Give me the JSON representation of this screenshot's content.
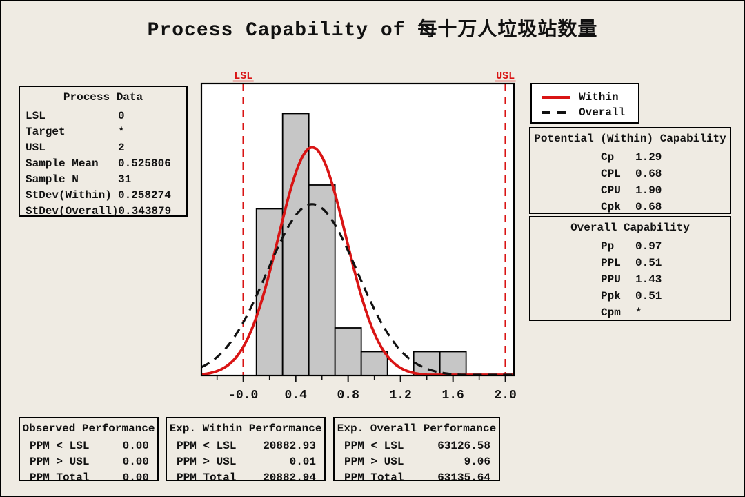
{
  "title": "Process Capability of 每十万人垃圾站数量",
  "process_data": {
    "title": "Process Data",
    "rows": [
      {
        "label": "LSL",
        "value": "0"
      },
      {
        "label": "Target",
        "value": "*"
      },
      {
        "label": "USL",
        "value": "2"
      },
      {
        "label": "Sample Mean",
        "value": "0.525806"
      },
      {
        "label": "Sample N",
        "value": "31"
      },
      {
        "label": "StDev(Within)",
        "value": "0.258274"
      },
      {
        "label": "StDev(Overall)",
        "value": "0.343879"
      }
    ]
  },
  "legend": {
    "items": [
      {
        "label": "Within",
        "style": "solid",
        "color": "#d91414"
      },
      {
        "label": "Overall",
        "style": "dashed",
        "color": "#111111"
      }
    ]
  },
  "within_capability": {
    "title": "Potential (Within) Capability",
    "rows": [
      {
        "label": "Cp",
        "value": "1.29"
      },
      {
        "label": "CPL",
        "value": "0.68"
      },
      {
        "label": "CPU",
        "value": "1.90"
      },
      {
        "label": "Cpk",
        "value": "0.68"
      }
    ]
  },
  "overall_capability": {
    "title": "Overall Capability",
    "rows": [
      {
        "label": "Pp",
        "value": "0.97"
      },
      {
        "label": "PPL",
        "value": "0.51"
      },
      {
        "label": "PPU",
        "value": "1.43"
      },
      {
        "label": "Ppk",
        "value": "0.51"
      },
      {
        "label": "Cpm",
        "value": "*"
      }
    ]
  },
  "performance_panels": [
    {
      "title": "Observed Performance",
      "rows": [
        {
          "label": "PPM < LSL",
          "value": "0.00"
        },
        {
          "label": "PPM > USL",
          "value": "0.00"
        },
        {
          "label": "PPM Total",
          "value": "0.00"
        }
      ]
    },
    {
      "title": "Exp. Within Performance",
      "rows": [
        {
          "label": "PPM < LSL",
          "value": "20882.93"
        },
        {
          "label": "PPM > USL",
          "value": "0.01"
        },
        {
          "label": "PPM Total",
          "value": "20882.94"
        }
      ]
    },
    {
      "title": "Exp. Overall Performance",
      "rows": [
        {
          "label": "PPM < LSL",
          "value": "63126.58"
        },
        {
          "label": "PPM > USL",
          "value": "9.06"
        },
        {
          "label": "PPM Total",
          "value": "63135.64"
        }
      ]
    }
  ],
  "chart_data": {
    "type": "bar",
    "subtype": "capability-histogram",
    "title": "Process Capability of 每十万人垃圾站数量",
    "sample_n": 31,
    "bins": {
      "start": 0.1,
      "bin_width": 0.2,
      "counts": [
        7,
        11,
        8,
        2,
        1,
        0,
        1,
        1
      ]
    },
    "bar_fill": "#c6c6c6",
    "bar_stroke": "#000000",
    "curves": [
      {
        "name": "Within",
        "mean": 0.525806,
        "stdev": 0.258274,
        "color": "#d91414",
        "style": "solid"
      },
      {
        "name": "Overall",
        "mean": 0.525806,
        "stdev": 0.343879,
        "color": "#111111",
        "style": "dashed"
      }
    ],
    "spec_lines": [
      {
        "label": "LSL",
        "value": 0,
        "color": "#d91414"
      },
      {
        "label": "USL",
        "value": 2,
        "color": "#d91414"
      }
    ],
    "x_axis": {
      "range": [
        -0.3195,
        2.065
      ],
      "major_ticks": [
        0,
        0.4,
        0.8,
        1.2,
        1.6,
        2.0
      ],
      "major_tick_labels": [
        "-0.0",
        "0.4",
        "0.8",
        "1.2",
        "1.6",
        "2.0"
      ],
      "minor_tick_start": -0.2,
      "minor_tick_step": 0.2,
      "minor_tick_end": 2.0
    },
    "y_axis": {
      "max_counts": 12.26,
      "visible": false
    },
    "grid": false,
    "legend_position": "outside-upper-right"
  }
}
